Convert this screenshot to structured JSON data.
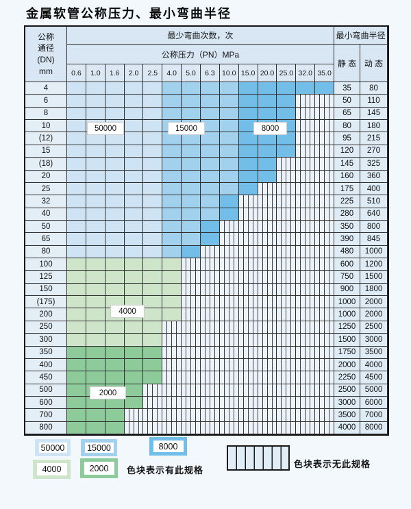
{
  "title": "金属软管公称压力、最小弯曲半径",
  "colors": {
    "band_50000": "#cee4f5",
    "band_15000": "#a2d1ee",
    "band_8000": "#72bee8",
    "band_4000": "#cee5ca",
    "band_2000": "#8ecb9b",
    "header_bg": "#d8e7f3",
    "hatch_bg": "#edf3fa",
    "grid_line": "#2e2e2e"
  },
  "table": {
    "dn_header_lines": [
      "公称",
      "通径",
      "(DN)",
      "mm"
    ],
    "cycles_header": "最少弯曲次数，次",
    "pressure_header": "公称压力（PN）MPa",
    "radius_header": "最小弯曲半径",
    "static_header": "静 态",
    "dynamic_header": "动 态",
    "pressure_cols": [
      "0.6",
      "1.0",
      "1.6",
      "2.0",
      "2.5",
      "4.0",
      "5.0",
      "6.3",
      "10.0",
      "15.0",
      "20.0",
      "25.0",
      "32.0",
      "35.0"
    ],
    "rows": [
      {
        "dn": "4",
        "bands": [
          [
            "band_50000",
            0,
            4
          ],
          [
            "band_15000",
            5,
            8
          ],
          [
            "band_8000",
            9,
            13
          ]
        ],
        "static": "35",
        "dynamic": "80"
      },
      {
        "dn": "6",
        "bands": [
          [
            "band_50000",
            0,
            4
          ],
          [
            "band_15000",
            5,
            8
          ],
          [
            "band_8000",
            9,
            11
          ]
        ],
        "static": "50",
        "dynamic": "110"
      },
      {
        "dn": "8",
        "bands": [
          [
            "band_50000",
            0,
            4
          ],
          [
            "band_15000",
            5,
            8
          ],
          [
            "band_8000",
            9,
            11
          ]
        ],
        "static": "65",
        "dynamic": "145"
      },
      {
        "dn": "10",
        "bands": [
          [
            "band_50000",
            0,
            4
          ],
          [
            "band_15000",
            5,
            8
          ],
          [
            "band_8000",
            9,
            11
          ]
        ],
        "static": "80",
        "dynamic": "180"
      },
      {
        "dn": "(12)",
        "bands": [
          [
            "band_50000",
            0,
            4
          ],
          [
            "band_15000",
            5,
            8
          ],
          [
            "band_8000",
            9,
            11
          ]
        ],
        "static": "95",
        "dynamic": "215"
      },
      {
        "dn": "15",
        "bands": [
          [
            "band_50000",
            0,
            4
          ],
          [
            "band_15000",
            5,
            8
          ],
          [
            "band_8000",
            9,
            11
          ]
        ],
        "static": "120",
        "dynamic": "270"
      },
      {
        "dn": "(18)",
        "bands": [
          [
            "band_50000",
            0,
            4
          ],
          [
            "band_15000",
            5,
            8
          ],
          [
            "band_8000",
            9,
            10
          ]
        ],
        "static": "145",
        "dynamic": "325"
      },
      {
        "dn": "20",
        "bands": [
          [
            "band_50000",
            0,
            4
          ],
          [
            "band_15000",
            5,
            8
          ],
          [
            "band_8000",
            9,
            10
          ]
        ],
        "static": "160",
        "dynamic": "360"
      },
      {
        "dn": "25",
        "bands": [
          [
            "band_50000",
            0,
            4
          ],
          [
            "band_15000",
            5,
            8
          ],
          [
            "band_8000",
            9,
            9
          ]
        ],
        "static": "175",
        "dynamic": "400"
      },
      {
        "dn": "32",
        "bands": [
          [
            "band_50000",
            0,
            4
          ],
          [
            "band_15000",
            5,
            7
          ],
          [
            "band_8000",
            8,
            8
          ]
        ],
        "static": "225",
        "dynamic": "510"
      },
      {
        "dn": "40",
        "bands": [
          [
            "band_50000",
            0,
            4
          ],
          [
            "band_15000",
            5,
            7
          ],
          [
            "band_8000",
            8,
            8
          ]
        ],
        "static": "280",
        "dynamic": "640"
      },
      {
        "dn": "50",
        "bands": [
          [
            "band_50000",
            0,
            4
          ],
          [
            "band_15000",
            5,
            6
          ],
          [
            "band_8000",
            7,
            7
          ]
        ],
        "static": "350",
        "dynamic": "800"
      },
      {
        "dn": "65",
        "bands": [
          [
            "band_50000",
            0,
            4
          ],
          [
            "band_15000",
            5,
            6
          ],
          [
            "band_8000",
            7,
            7
          ]
        ],
        "static": "390",
        "dynamic": "845"
      },
      {
        "dn": "80",
        "bands": [
          [
            "band_50000",
            0,
            4
          ],
          [
            "band_15000",
            5,
            5
          ],
          [
            "band_8000",
            6,
            6
          ]
        ],
        "static": "480",
        "dynamic": "1000"
      },
      {
        "dn": "100",
        "bands": [
          [
            "band_4000",
            0,
            5
          ]
        ],
        "static": "600",
        "dynamic": "1200"
      },
      {
        "dn": "125",
        "bands": [
          [
            "band_4000",
            0,
            5
          ]
        ],
        "static": "750",
        "dynamic": "1500"
      },
      {
        "dn": "150",
        "bands": [
          [
            "band_4000",
            0,
            5
          ]
        ],
        "static": "900",
        "dynamic": "1800"
      },
      {
        "dn": "(175)",
        "bands": [
          [
            "band_4000",
            0,
            5
          ]
        ],
        "static": "1000",
        "dynamic": "2000"
      },
      {
        "dn": "200",
        "bands": [
          [
            "band_4000",
            0,
            5
          ]
        ],
        "static": "1000",
        "dynamic": "2000"
      },
      {
        "dn": "250",
        "bands": [
          [
            "band_4000",
            0,
            4
          ]
        ],
        "static": "1250",
        "dynamic": "2500"
      },
      {
        "dn": "300",
        "bands": [
          [
            "band_4000",
            0,
            4
          ]
        ],
        "static": "1500",
        "dynamic": "3000"
      },
      {
        "dn": "350",
        "bands": [
          [
            "band_2000",
            0,
            4
          ]
        ],
        "static": "1750",
        "dynamic": "3500"
      },
      {
        "dn": "400",
        "bands": [
          [
            "band_2000",
            0,
            4
          ]
        ],
        "static": "2000",
        "dynamic": "4000"
      },
      {
        "dn": "450",
        "bands": [
          [
            "band_2000",
            0,
            4
          ]
        ],
        "static": "2250",
        "dynamic": "4500"
      },
      {
        "dn": "500",
        "bands": [
          [
            "band_2000",
            0,
            3
          ]
        ],
        "static": "2500",
        "dynamic": "5000"
      },
      {
        "dn": "600",
        "bands": [
          [
            "band_2000",
            0,
            3
          ]
        ],
        "static": "3000",
        "dynamic": "6000"
      },
      {
        "dn": "700",
        "bands": [
          [
            "band_2000",
            0,
            2
          ]
        ],
        "static": "3500",
        "dynamic": "7000"
      },
      {
        "dn": "800",
        "bands": [
          [
            "band_2000",
            0,
            2
          ]
        ],
        "static": "4000",
        "dynamic": "8000"
      }
    ]
  },
  "band_labels": [
    "50000",
    "15000",
    "8000",
    "4000",
    "2000"
  ],
  "legend": {
    "spec_items": [
      {
        "label": "50000",
        "color_key": "band_50000"
      },
      {
        "label": "15000",
        "color_key": "band_15000"
      },
      {
        "label": "8000",
        "color_key": "band_8000"
      },
      {
        "label": "4000",
        "color_key": "band_4000"
      },
      {
        "label": "2000",
        "color_key": "band_2000"
      }
    ],
    "has_spec_note": "色块表示有此规格",
    "no_spec_note": "色块表示无此规格"
  }
}
